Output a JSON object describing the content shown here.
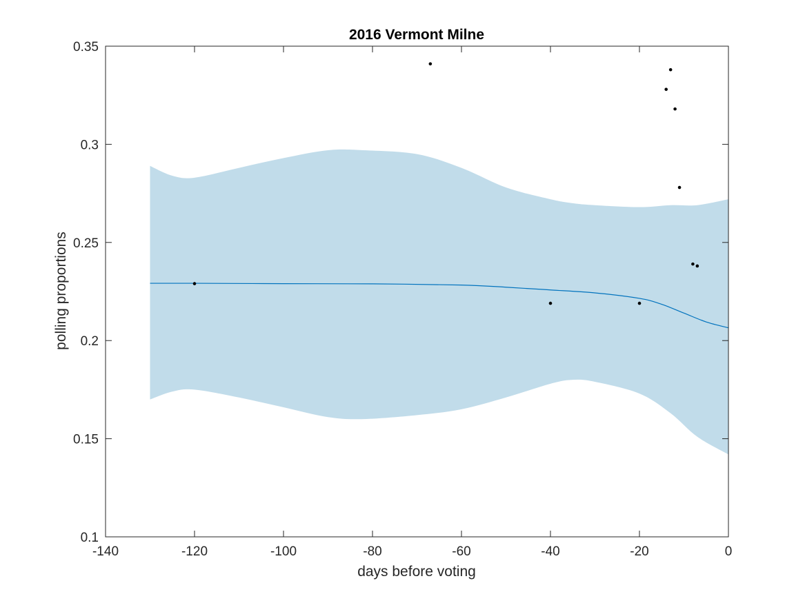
{
  "chart_data": {
    "type": "line",
    "title": "2016 Vermont Milne",
    "xlabel": "days before voting",
    "ylabel": "polling proportions",
    "xlim": [
      -140,
      0
    ],
    "ylim": [
      0.1,
      0.35
    ],
    "xticks": [
      -140,
      -120,
      -100,
      -80,
      -60,
      -40,
      -20,
      0
    ],
    "xtick_labels": [
      "-140",
      "-120",
      "-100",
      "-80",
      "-60",
      "-40",
      "-20",
      "0"
    ],
    "yticks": [
      0.1,
      0.15,
      0.2,
      0.25,
      0.3,
      0.35
    ],
    "ytick_labels": [
      "0.1",
      "0.15",
      "0.2",
      "0.25",
      "0.3",
      "0.35"
    ],
    "grid": false,
    "colors": {
      "band": "#c1dcea",
      "line": "#0072bd",
      "points": "#000000",
      "axes": "#262626"
    },
    "band": {
      "x": [
        -130,
        -125,
        -120,
        -110,
        -100,
        -90,
        -82,
        -70,
        -60,
        -50,
        -40,
        -35,
        -30,
        -20,
        -13,
        -7,
        0
      ],
      "upper": [
        0.289,
        0.284,
        0.283,
        0.288,
        0.293,
        0.297,
        0.297,
        0.295,
        0.288,
        0.278,
        0.272,
        0.27,
        0.269,
        0.268,
        0.269,
        0.269,
        0.272
      ],
      "lower": [
        0.17,
        0.174,
        0.175,
        0.171,
        0.166,
        0.161,
        0.16,
        0.162,
        0.165,
        0.171,
        0.178,
        0.18,
        0.179,
        0.173,
        0.163,
        0.151,
        0.142
      ]
    },
    "fit": {
      "x": [
        -130,
        -120,
        -100,
        -80,
        -60,
        -50,
        -40,
        -30,
        -20,
        -15,
        -10,
        -5,
        0
      ],
      "y": [
        0.2292,
        0.2292,
        0.229,
        0.2289,
        0.2283,
        0.2272,
        0.2258,
        0.2243,
        0.2215,
        0.2185,
        0.214,
        0.2095,
        0.2065
      ]
    },
    "points": [
      {
        "x": -120,
        "y": 0.229
      },
      {
        "x": -67,
        "y": 0.341
      },
      {
        "x": -40,
        "y": 0.219
      },
      {
        "x": -20,
        "y": 0.219
      },
      {
        "x": -14,
        "y": 0.328
      },
      {
        "x": -13,
        "y": 0.338
      },
      {
        "x": -12,
        "y": 0.318
      },
      {
        "x": -11,
        "y": 0.278
      },
      {
        "x": -8,
        "y": 0.239
      },
      {
        "x": -7,
        "y": 0.238
      }
    ]
  }
}
